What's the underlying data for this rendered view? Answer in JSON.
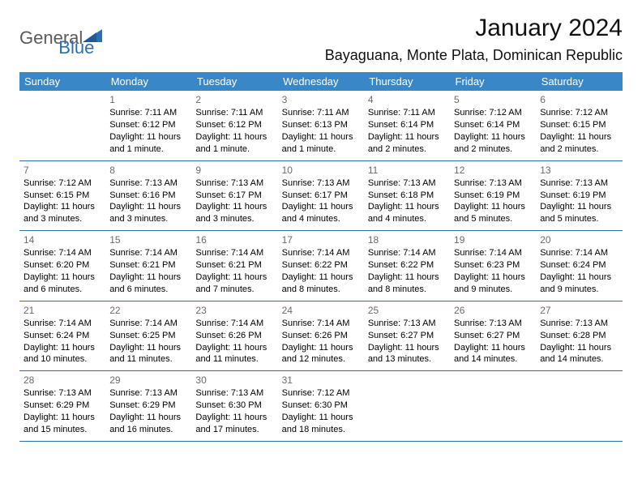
{
  "brand": {
    "part1": "General",
    "part2": "Blue"
  },
  "title": "January 2024",
  "location": "Bayaguana, Monte Plata, Dominican Republic",
  "colors": {
    "header_bg": "#3a87c8",
    "header_text": "#ffffff",
    "row_border": "#2e6da8",
    "daynum": "#6b6b6b",
    "brand_gray": "#5a5a5f",
    "brand_blue": "#2a6fb5"
  },
  "fonts": {
    "title_size": 30,
    "location_size": 18,
    "dayhdr_size": 13,
    "cell_size": 11
  },
  "day_headers": [
    "Sunday",
    "Monday",
    "Tuesday",
    "Wednesday",
    "Thursday",
    "Friday",
    "Saturday"
  ],
  "weeks": [
    [
      null,
      {
        "n": "1",
        "sr": "7:11 AM",
        "ss": "6:12 PM",
        "dl": "11 hours and 1 minute."
      },
      {
        "n": "2",
        "sr": "7:11 AM",
        "ss": "6:12 PM",
        "dl": "11 hours and 1 minute."
      },
      {
        "n": "3",
        "sr": "7:11 AM",
        "ss": "6:13 PM",
        "dl": "11 hours and 1 minute."
      },
      {
        "n": "4",
        "sr": "7:11 AM",
        "ss": "6:14 PM",
        "dl": "11 hours and 2 minutes."
      },
      {
        "n": "5",
        "sr": "7:12 AM",
        "ss": "6:14 PM",
        "dl": "11 hours and 2 minutes."
      },
      {
        "n": "6",
        "sr": "7:12 AM",
        "ss": "6:15 PM",
        "dl": "11 hours and 2 minutes."
      }
    ],
    [
      {
        "n": "7",
        "sr": "7:12 AM",
        "ss": "6:15 PM",
        "dl": "11 hours and 3 minutes."
      },
      {
        "n": "8",
        "sr": "7:13 AM",
        "ss": "6:16 PM",
        "dl": "11 hours and 3 minutes."
      },
      {
        "n": "9",
        "sr": "7:13 AM",
        "ss": "6:17 PM",
        "dl": "11 hours and 3 minutes."
      },
      {
        "n": "10",
        "sr": "7:13 AM",
        "ss": "6:17 PM",
        "dl": "11 hours and 4 minutes."
      },
      {
        "n": "11",
        "sr": "7:13 AM",
        "ss": "6:18 PM",
        "dl": "11 hours and 4 minutes."
      },
      {
        "n": "12",
        "sr": "7:13 AM",
        "ss": "6:19 PM",
        "dl": "11 hours and 5 minutes."
      },
      {
        "n": "13",
        "sr": "7:13 AM",
        "ss": "6:19 PM",
        "dl": "11 hours and 5 minutes."
      }
    ],
    [
      {
        "n": "14",
        "sr": "7:14 AM",
        "ss": "6:20 PM",
        "dl": "11 hours and 6 minutes."
      },
      {
        "n": "15",
        "sr": "7:14 AM",
        "ss": "6:21 PM",
        "dl": "11 hours and 6 minutes."
      },
      {
        "n": "16",
        "sr": "7:14 AM",
        "ss": "6:21 PM",
        "dl": "11 hours and 7 minutes."
      },
      {
        "n": "17",
        "sr": "7:14 AM",
        "ss": "6:22 PM",
        "dl": "11 hours and 8 minutes."
      },
      {
        "n": "18",
        "sr": "7:14 AM",
        "ss": "6:22 PM",
        "dl": "11 hours and 8 minutes."
      },
      {
        "n": "19",
        "sr": "7:14 AM",
        "ss": "6:23 PM",
        "dl": "11 hours and 9 minutes."
      },
      {
        "n": "20",
        "sr": "7:14 AM",
        "ss": "6:24 PM",
        "dl": "11 hours and 9 minutes."
      }
    ],
    [
      {
        "n": "21",
        "sr": "7:14 AM",
        "ss": "6:24 PM",
        "dl": "11 hours and 10 minutes."
      },
      {
        "n": "22",
        "sr": "7:14 AM",
        "ss": "6:25 PM",
        "dl": "11 hours and 11 minutes."
      },
      {
        "n": "23",
        "sr": "7:14 AM",
        "ss": "6:26 PM",
        "dl": "11 hours and 11 minutes."
      },
      {
        "n": "24",
        "sr": "7:14 AM",
        "ss": "6:26 PM",
        "dl": "11 hours and 12 minutes."
      },
      {
        "n": "25",
        "sr": "7:13 AM",
        "ss": "6:27 PM",
        "dl": "11 hours and 13 minutes."
      },
      {
        "n": "26",
        "sr": "7:13 AM",
        "ss": "6:27 PM",
        "dl": "11 hours and 14 minutes."
      },
      {
        "n": "27",
        "sr": "7:13 AM",
        "ss": "6:28 PM",
        "dl": "11 hours and 14 minutes."
      }
    ],
    [
      {
        "n": "28",
        "sr": "7:13 AM",
        "ss": "6:29 PM",
        "dl": "11 hours and 15 minutes."
      },
      {
        "n": "29",
        "sr": "7:13 AM",
        "ss": "6:29 PM",
        "dl": "11 hours and 16 minutes."
      },
      {
        "n": "30",
        "sr": "7:13 AM",
        "ss": "6:30 PM",
        "dl": "11 hours and 17 minutes."
      },
      {
        "n": "31",
        "sr": "7:12 AM",
        "ss": "6:30 PM",
        "dl": "11 hours and 18 minutes."
      },
      null,
      null,
      null
    ]
  ]
}
